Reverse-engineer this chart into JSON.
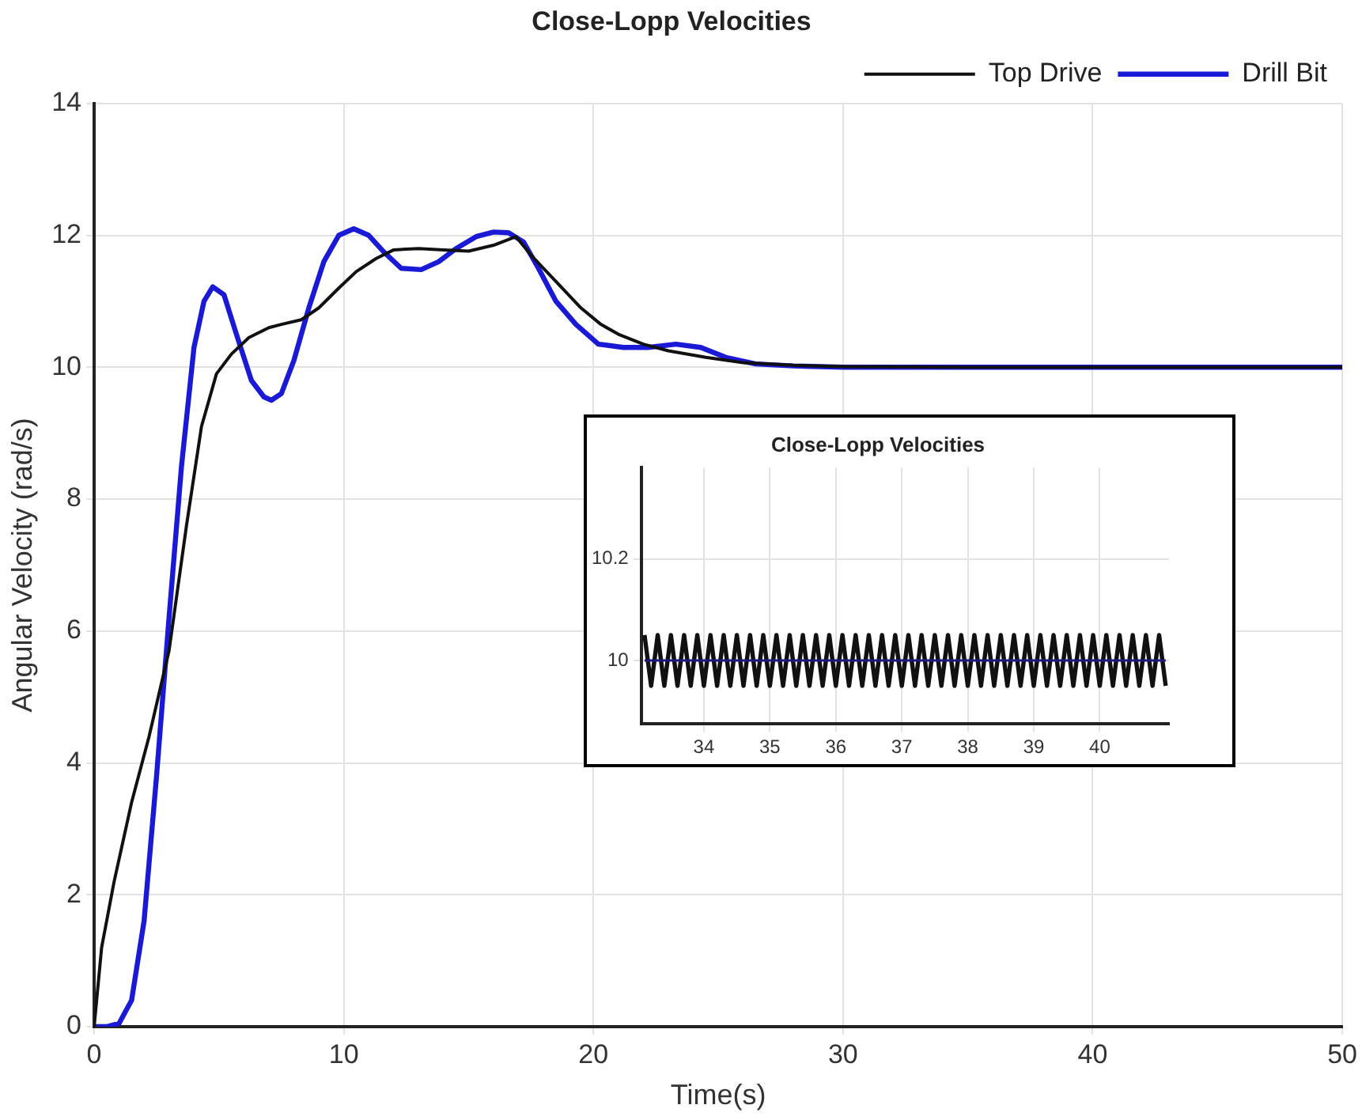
{
  "chart_data": [
    {
      "type": "line",
      "title": "Close-Lopp Velocities",
      "xlabel": "Time(s)",
      "ylabel": "Angular Velocity (rad/s)",
      "xlim": [
        0,
        50
      ],
      "ylim": [
        0,
        14
      ],
      "xticks": [
        0,
        10,
        20,
        30,
        40,
        50
      ],
      "yticks": [
        0,
        2,
        4,
        6,
        8,
        10,
        12,
        14
      ],
      "grid": true,
      "legend": "top right",
      "series": [
        {
          "name": "Drill Bit",
          "color": "#1a1ad6",
          "x": [
            0,
            0.5,
            1,
            1.5,
            2,
            2.5,
            3,
            3.5,
            4,
            4.4,
            4.75,
            5.2,
            5.7,
            6.3,
            6.8,
            7.1,
            7.5,
            8,
            8.6,
            9.2,
            9.8,
            10.4,
            11,
            11.6,
            12.3,
            13.1,
            13.8,
            14.5,
            15.3,
            16,
            16.6,
            17.2,
            17.8,
            18.5,
            19.3,
            20.2,
            21.2,
            22.2,
            23.3,
            24.3,
            25.3,
            26.5,
            28,
            30,
            35,
            40,
            45,
            50
          ],
          "values": [
            0,
            0,
            0.05,
            0.4,
            1.6,
            3.8,
            6.2,
            8.5,
            10.3,
            11,
            11.22,
            11.1,
            10.5,
            9.8,
            9.55,
            9.5,
            9.6,
            10.1,
            10.9,
            11.6,
            12,
            12.1,
            12,
            11.75,
            11.5,
            11.48,
            11.6,
            11.8,
            11.98,
            12.05,
            12.04,
            11.9,
            11.5,
            11,
            10.65,
            10.35,
            10.3,
            10.3,
            10.35,
            10.3,
            10.15,
            10.05,
            10.02,
            10,
            10,
            10,
            10,
            10
          ]
        },
        {
          "name": "Top Drive",
          "color": "#111111",
          "x": [
            0,
            0.3,
            0.8,
            1.5,
            2.2,
            3,
            3.7,
            4.3,
            4.9,
            5.5,
            6.2,
            7,
            7.5,
            8.3,
            9,
            9.8,
            10.5,
            11.3,
            12,
            13,
            14,
            15,
            16,
            16.9,
            17.5,
            18.5,
            19.5,
            20.3,
            21,
            22,
            23,
            24.5,
            26,
            28,
            30,
            35,
            40,
            45,
            50
          ],
          "values": [
            0,
            1.2,
            2.2,
            3.4,
            4.4,
            5.7,
            7.6,
            9.1,
            9.9,
            10.2,
            10.45,
            10.6,
            10.65,
            10.72,
            10.9,
            11.2,
            11.45,
            11.65,
            11.78,
            11.8,
            11.78,
            11.76,
            11.85,
            11.98,
            11.7,
            11.3,
            10.9,
            10.65,
            10.5,
            10.35,
            10.25,
            10.15,
            10.07,
            10.03,
            10.01,
            10,
            10,
            10,
            10
          ]
        }
      ]
    },
    {
      "type": "line",
      "title": "Close-Lopp Velocities",
      "xlim": [
        33.05,
        41.05
      ],
      "ylim": [
        9.875,
        10.38
      ],
      "xticks": [
        34,
        35,
        36,
        37,
        38,
        39,
        40
      ],
      "yticks": [
        10,
        10.2
      ],
      "grid": true,
      "series": [
        {
          "color": "#111111",
          "x": [
            33.1,
            33.2,
            33.3,
            33.4,
            33.5,
            33.6,
            33.7,
            33.8,
            33.9,
            34,
            34.1,
            34.2,
            34.3,
            34.4,
            34.5,
            34.6,
            34.7,
            34.8,
            34.9,
            35,
            35.1,
            35.2,
            35.3,
            35.4,
            35.5,
            35.6,
            35.7,
            35.8,
            35.9,
            36,
            36.1,
            36.2,
            36.3,
            36.4,
            36.5,
            36.6,
            36.7,
            36.8,
            36.9,
            37,
            37.1,
            37.2,
            37.3,
            37.4,
            37.5,
            37.6,
            37.7,
            37.8,
            37.9,
            38,
            38.1,
            38.2,
            38.3,
            38.4,
            38.5,
            38.6,
            38.7,
            38.8,
            38.9,
            39,
            39.1,
            39.2,
            39.3,
            39.4,
            39.5,
            39.6,
            39.7,
            39.8,
            39.9,
            40,
            40.1,
            40.2,
            40.3,
            40.4,
            40.5,
            40.6,
            40.7,
            40.8,
            40.9,
            41
          ],
          "values": [
            10.05,
            9.95,
            10.05,
            9.95,
            10.05,
            9.95,
            10.05,
            9.95,
            10.05,
            9.95,
            10.05,
            9.95,
            10.05,
            9.95,
            10.05,
            9.95,
            10.05,
            9.95,
            10.05,
            9.95,
            10.05,
            9.95,
            10.05,
            9.95,
            10.05,
            9.95,
            10.05,
            9.95,
            10.05,
            9.95,
            10.05,
            9.95,
            10.05,
            9.95,
            10.05,
            9.95,
            10.05,
            9.95,
            10.05,
            9.95,
            10.05,
            9.95,
            10.05,
            9.95,
            10.05,
            9.95,
            10.05,
            9.95,
            10.05,
            9.95,
            10.05,
            9.95,
            10.05,
            9.95,
            10.05,
            9.95,
            10.05,
            9.95,
            10.05,
            9.95,
            10.05,
            9.95,
            10.05,
            9.95,
            10.05,
            9.95,
            10.05,
            9.95,
            10.05,
            9.95,
            10.05,
            9.95,
            10.05,
            9.95,
            10.05,
            9.95,
            10.05,
            9.95,
            10.05,
            9.95
          ]
        },
        {
          "color": "#1a1a80",
          "x": [
            33.1,
            41
          ],
          "values": [
            10,
            10
          ]
        }
      ]
    }
  ]
}
